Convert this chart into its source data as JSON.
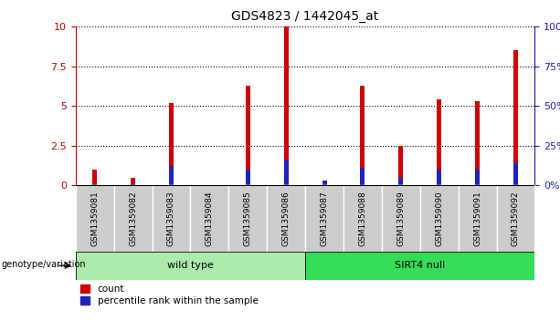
{
  "title": "GDS4823 / 1442045_at",
  "samples": [
    "GSM1359081",
    "GSM1359082",
    "GSM1359083",
    "GSM1359084",
    "GSM1359085",
    "GSM1359086",
    "GSM1359087",
    "GSM1359088",
    "GSM1359089",
    "GSM1359090",
    "GSM1359091",
    "GSM1359092"
  ],
  "count": [
    1.0,
    0.5,
    5.2,
    0.0,
    6.3,
    10.0,
    0.2,
    6.3,
    2.5,
    5.4,
    5.3,
    8.5
  ],
  "percentile": [
    1.0,
    0.5,
    12.0,
    0.0,
    10.0,
    16.0,
    3.0,
    11.0,
    5.0,
    10.0,
    10.0,
    14.0
  ],
  "ylim_left": [
    0,
    10
  ],
  "ylim_right": [
    0,
    100
  ],
  "yticks_left": [
    0,
    2.5,
    5.0,
    7.5,
    10
  ],
  "yticks_right": [
    0,
    25,
    50,
    75,
    100
  ],
  "groups": [
    {
      "label": "wild type",
      "indices": [
        0,
        1,
        2,
        3,
        4,
        5
      ],
      "color": "#AAEAAA"
    },
    {
      "label": "SIRT4 null",
      "indices": [
        6,
        7,
        8,
        9,
        10,
        11
      ],
      "color": "#33DD55"
    }
  ],
  "group_row_label": "genotype/variation",
  "bar_color_red": "#CC0000",
  "bar_color_blue": "#2222BB",
  "bar_width": 0.12,
  "bg_color": "#CCCCCC",
  "white_color": "#FFFFFF",
  "title_color": "#000000",
  "left_axis_color": "#CC0000",
  "right_axis_color": "#2222BB",
  "legend_red": "count",
  "legend_blue": "percentile rank within the sample"
}
